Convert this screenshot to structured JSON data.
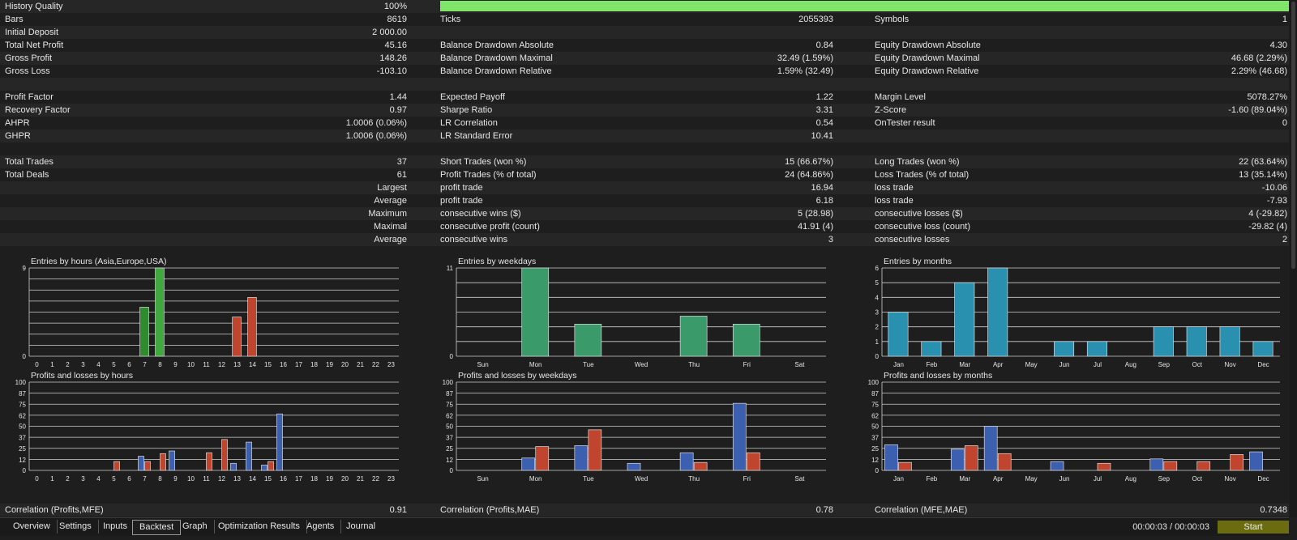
{
  "history": {
    "label": "History Quality",
    "value": "100%",
    "fraction": 1.0,
    "bar_color": "#7fe66a"
  },
  "stats_rows": [
    {
      "cells": [
        [
          "Bars",
          "8619"
        ],
        [
          "Ticks",
          "2055393"
        ],
        [
          "Symbols",
          "1"
        ]
      ]
    },
    {
      "cells": [
        [
          "Initial Deposit",
          "2 000.00"
        ],
        [
          "",
          ""
        ],
        [
          "",
          ""
        ]
      ]
    },
    {
      "cells": [
        [
          "Total Net Profit",
          "45.16"
        ],
        [
          "Balance Drawdown Absolute",
          "0.84"
        ],
        [
          "Equity Drawdown Absolute",
          "4.30"
        ]
      ]
    },
    {
      "cells": [
        [
          "Gross Profit",
          "148.26"
        ],
        [
          "Balance Drawdown Maximal",
          "32.49 (1.59%)"
        ],
        [
          "Equity Drawdown Maximal",
          "46.68 (2.29%)"
        ]
      ]
    },
    {
      "cells": [
        [
          "Gross Loss",
          "-103.10"
        ],
        [
          "Balance Drawdown Relative",
          "1.59% (32.49)"
        ],
        [
          "Equity Drawdown Relative",
          "2.29% (46.68)"
        ]
      ]
    },
    {
      "cells": [
        [
          "",
          ""
        ],
        [
          "",
          ""
        ],
        [
          "",
          ""
        ]
      ]
    },
    {
      "cells": [
        [
          "Profit Factor",
          "1.44"
        ],
        [
          "Expected Payoff",
          "1.22"
        ],
        [
          "Margin Level",
          "5078.27%"
        ]
      ]
    },
    {
      "cells": [
        [
          "Recovery Factor",
          "0.97"
        ],
        [
          "Sharpe Ratio",
          "3.31"
        ],
        [
          "Z-Score",
          "-1.60 (89.04%)"
        ]
      ]
    },
    {
      "cells": [
        [
          "AHPR",
          "1.0006 (0.06%)"
        ],
        [
          "LR Correlation",
          "0.54"
        ],
        [
          "OnTester result",
          "0"
        ]
      ]
    },
    {
      "cells": [
        [
          "GHPR",
          "1.0006 (0.06%)"
        ],
        [
          "LR Standard Error",
          "10.41"
        ],
        [
          "",
          ""
        ]
      ]
    },
    {
      "cells": [
        [
          "",
          ""
        ],
        [
          "",
          ""
        ],
        [
          "",
          ""
        ]
      ]
    },
    {
      "cells": [
        [
          "Total Trades",
          "37"
        ],
        [
          "Short Trades (won %)",
          "15 (66.67%)"
        ],
        [
          "Long Trades (won %)",
          "22 (63.64%)"
        ]
      ]
    },
    {
      "cells": [
        [
          "Total Deals",
          "61"
        ],
        [
          "Profit Trades (% of total)",
          "24 (64.86%)"
        ],
        [
          "Loss Trades (% of total)",
          "13 (35.14%)"
        ]
      ]
    },
    {
      "prefix": "Largest",
      "cells": [
        [
          "",
          ""
        ],
        [
          "profit trade",
          "16.94"
        ],
        [
          "loss trade",
          "-10.06"
        ]
      ]
    },
    {
      "prefix": "Average",
      "cells": [
        [
          "",
          ""
        ],
        [
          "profit trade",
          "6.18"
        ],
        [
          "loss trade",
          "-7.93"
        ]
      ]
    },
    {
      "prefix": "Maximum",
      "cells": [
        [
          "",
          ""
        ],
        [
          "consecutive wins ($)",
          "5 (28.98)"
        ],
        [
          "consecutive losses ($)",
          "4 (-29.82)"
        ]
      ]
    },
    {
      "prefix": "Maximal",
      "cells": [
        [
          "",
          ""
        ],
        [
          "consecutive profit (count)",
          "41.91 (4)"
        ],
        [
          "consecutive loss (count)",
          "-29.82 (4)"
        ]
      ]
    },
    {
      "prefix": "Average",
      "cells": [
        [
          "",
          ""
        ],
        [
          "consecutive wins",
          "3"
        ],
        [
          "consecutive losses",
          "2"
        ]
      ]
    },
    {
      "cells": [
        [
          "",
          ""
        ],
        [
          "",
          ""
        ],
        [
          "",
          ""
        ]
      ]
    }
  ],
  "correlation": [
    [
      "Correlation (Profits,MFE)",
      "0.91"
    ],
    [
      "Correlation (Profits,MAE)",
      "0.78"
    ],
    [
      "Correlation (MFE,MAE)",
      "0.7348"
    ]
  ],
  "chart_data": [
    {
      "type": "bar",
      "title": "Entries by hours (Asia,Europe,USA)",
      "categories": [
        "0",
        "1",
        "2",
        "3",
        "4",
        "5",
        "6",
        "7",
        "8",
        "9",
        "10",
        "11",
        "12",
        "13",
        "14",
        "15",
        "16",
        "17",
        "18",
        "19",
        "20",
        "21",
        "22",
        "23"
      ],
      "yticks": [
        "0",
        "9"
      ],
      "ylim": [
        0,
        9
      ],
      "gridlines": 8,
      "series": [
        {
          "values": [
            0,
            0,
            0,
            0,
            0,
            0,
            0,
            5,
            9,
            0,
            0,
            0,
            0,
            4,
            6,
            0,
            0,
            0,
            0,
            0,
            0,
            0,
            0,
            0
          ]
        }
      ],
      "bar_colors": [
        "",
        "",
        "",
        "",
        "",
        "",
        "",
        "#2e8b2e",
        "#3fa83f",
        "",
        "",
        "",
        "",
        "#c0452e",
        "#c0452e",
        "",
        "",
        "",
        "",
        "",
        "",
        "",
        "",
        ""
      ]
    },
    {
      "type": "bar",
      "title": "Entries by weekdays",
      "categories": [
        "Sun",
        "Mon",
        "Tue",
        "Wed",
        "Thu",
        "Fri",
        "Sat"
      ],
      "yticks": [
        "0",
        "11"
      ],
      "ylim": [
        0,
        11
      ],
      "gridlines": 6,
      "series": [
        {
          "values": [
            0,
            11,
            4,
            0,
            5,
            4,
            0
          ]
        }
      ],
      "color": "#3a9a6a"
    },
    {
      "type": "bar",
      "title": "Entries by months",
      "categories": [
        "Jan",
        "Feb",
        "Mar",
        "Apr",
        "May",
        "Jun",
        "Jul",
        "Aug",
        "Sep",
        "Oct",
        "Nov",
        "Dec"
      ],
      "yticks": [
        "0",
        "1",
        "2",
        "3",
        "4",
        "5",
        "6"
      ],
      "ylim": [
        0,
        6
      ],
      "gridlines": 6,
      "series": [
        {
          "values": [
            3,
            1,
            5,
            6,
            0,
            1,
            1,
            0,
            2,
            2,
            2,
            1
          ]
        }
      ],
      "color": "#2a90b0"
    },
    {
      "type": "bar",
      "title": "Profits and losses by hours",
      "categories": [
        "0",
        "1",
        "2",
        "3",
        "4",
        "5",
        "6",
        "7",
        "8",
        "9",
        "10",
        "11",
        "12",
        "13",
        "14",
        "15",
        "16",
        "17",
        "18",
        "19",
        "20",
        "21",
        "22",
        "23"
      ],
      "yticks": [
        "0",
        "12",
        "25",
        "37",
        "50",
        "62",
        "75",
        "87",
        "100"
      ],
      "ylim": [
        0,
        100
      ],
      "gridlines": 8,
      "series": [
        {
          "values": [
            0,
            0,
            0,
            0,
            0,
            0,
            0,
            16,
            0,
            22,
            0,
            0,
            0,
            8,
            32,
            6,
            64,
            0,
            0,
            0,
            0,
            0,
            0,
            0
          ],
          "color": "#3c5fb0"
        },
        {
          "values": [
            0,
            0,
            0,
            0,
            0,
            10,
            0,
            10,
            19,
            0,
            0,
            20,
            35,
            0,
            0,
            10,
            0,
            0,
            0,
            0,
            0,
            0,
            0,
            0
          ],
          "color": "#c0452e"
        }
      ]
    },
    {
      "type": "bar",
      "title": "Profits and losses by weekdays",
      "categories": [
        "Sun",
        "Mon",
        "Tue",
        "Wed",
        "Thu",
        "Fri",
        "Sat"
      ],
      "yticks": [
        "0",
        "12",
        "25",
        "37",
        "50",
        "62",
        "75",
        "87",
        "100"
      ],
      "ylim": [
        0,
        100
      ],
      "gridlines": 8,
      "series": [
        {
          "values": [
            0,
            14,
            28,
            8,
            20,
            76,
            0
          ],
          "color": "#3c5fb0"
        },
        {
          "values": [
            0,
            27,
            46,
            0,
            9,
            20,
            0
          ],
          "color": "#c0452e"
        }
      ]
    },
    {
      "type": "bar",
      "title": "Profits and losses by months",
      "categories": [
        "Jan",
        "Feb",
        "Mar",
        "Apr",
        "May",
        "Jun",
        "Jul",
        "Aug",
        "Sep",
        "Oct",
        "Nov",
        "Dec"
      ],
      "yticks": [
        "0",
        "12",
        "25",
        "37",
        "50",
        "62",
        "75",
        "87",
        "100"
      ],
      "ylim": [
        0,
        100
      ],
      "gridlines": 8,
      "series": [
        {
          "values": [
            29,
            0,
            24,
            50,
            0,
            10,
            0,
            0,
            13,
            0,
            0,
            21
          ],
          "color": "#3c5fb0"
        },
        {
          "values": [
            9,
            0,
            28,
            19,
            0,
            0,
            8,
            0,
            10,
            10,
            18,
            0
          ],
          "color": "#c0452e"
        }
      ]
    }
  ],
  "tabs": [
    "Overview",
    "Settings",
    "Inputs",
    "Backtest",
    "Graph",
    "Optimization Results",
    "Agents",
    "Journal"
  ],
  "active_tab": "Backtest",
  "timer": "00:00:03 / 00:00:03",
  "start_label": "Start"
}
